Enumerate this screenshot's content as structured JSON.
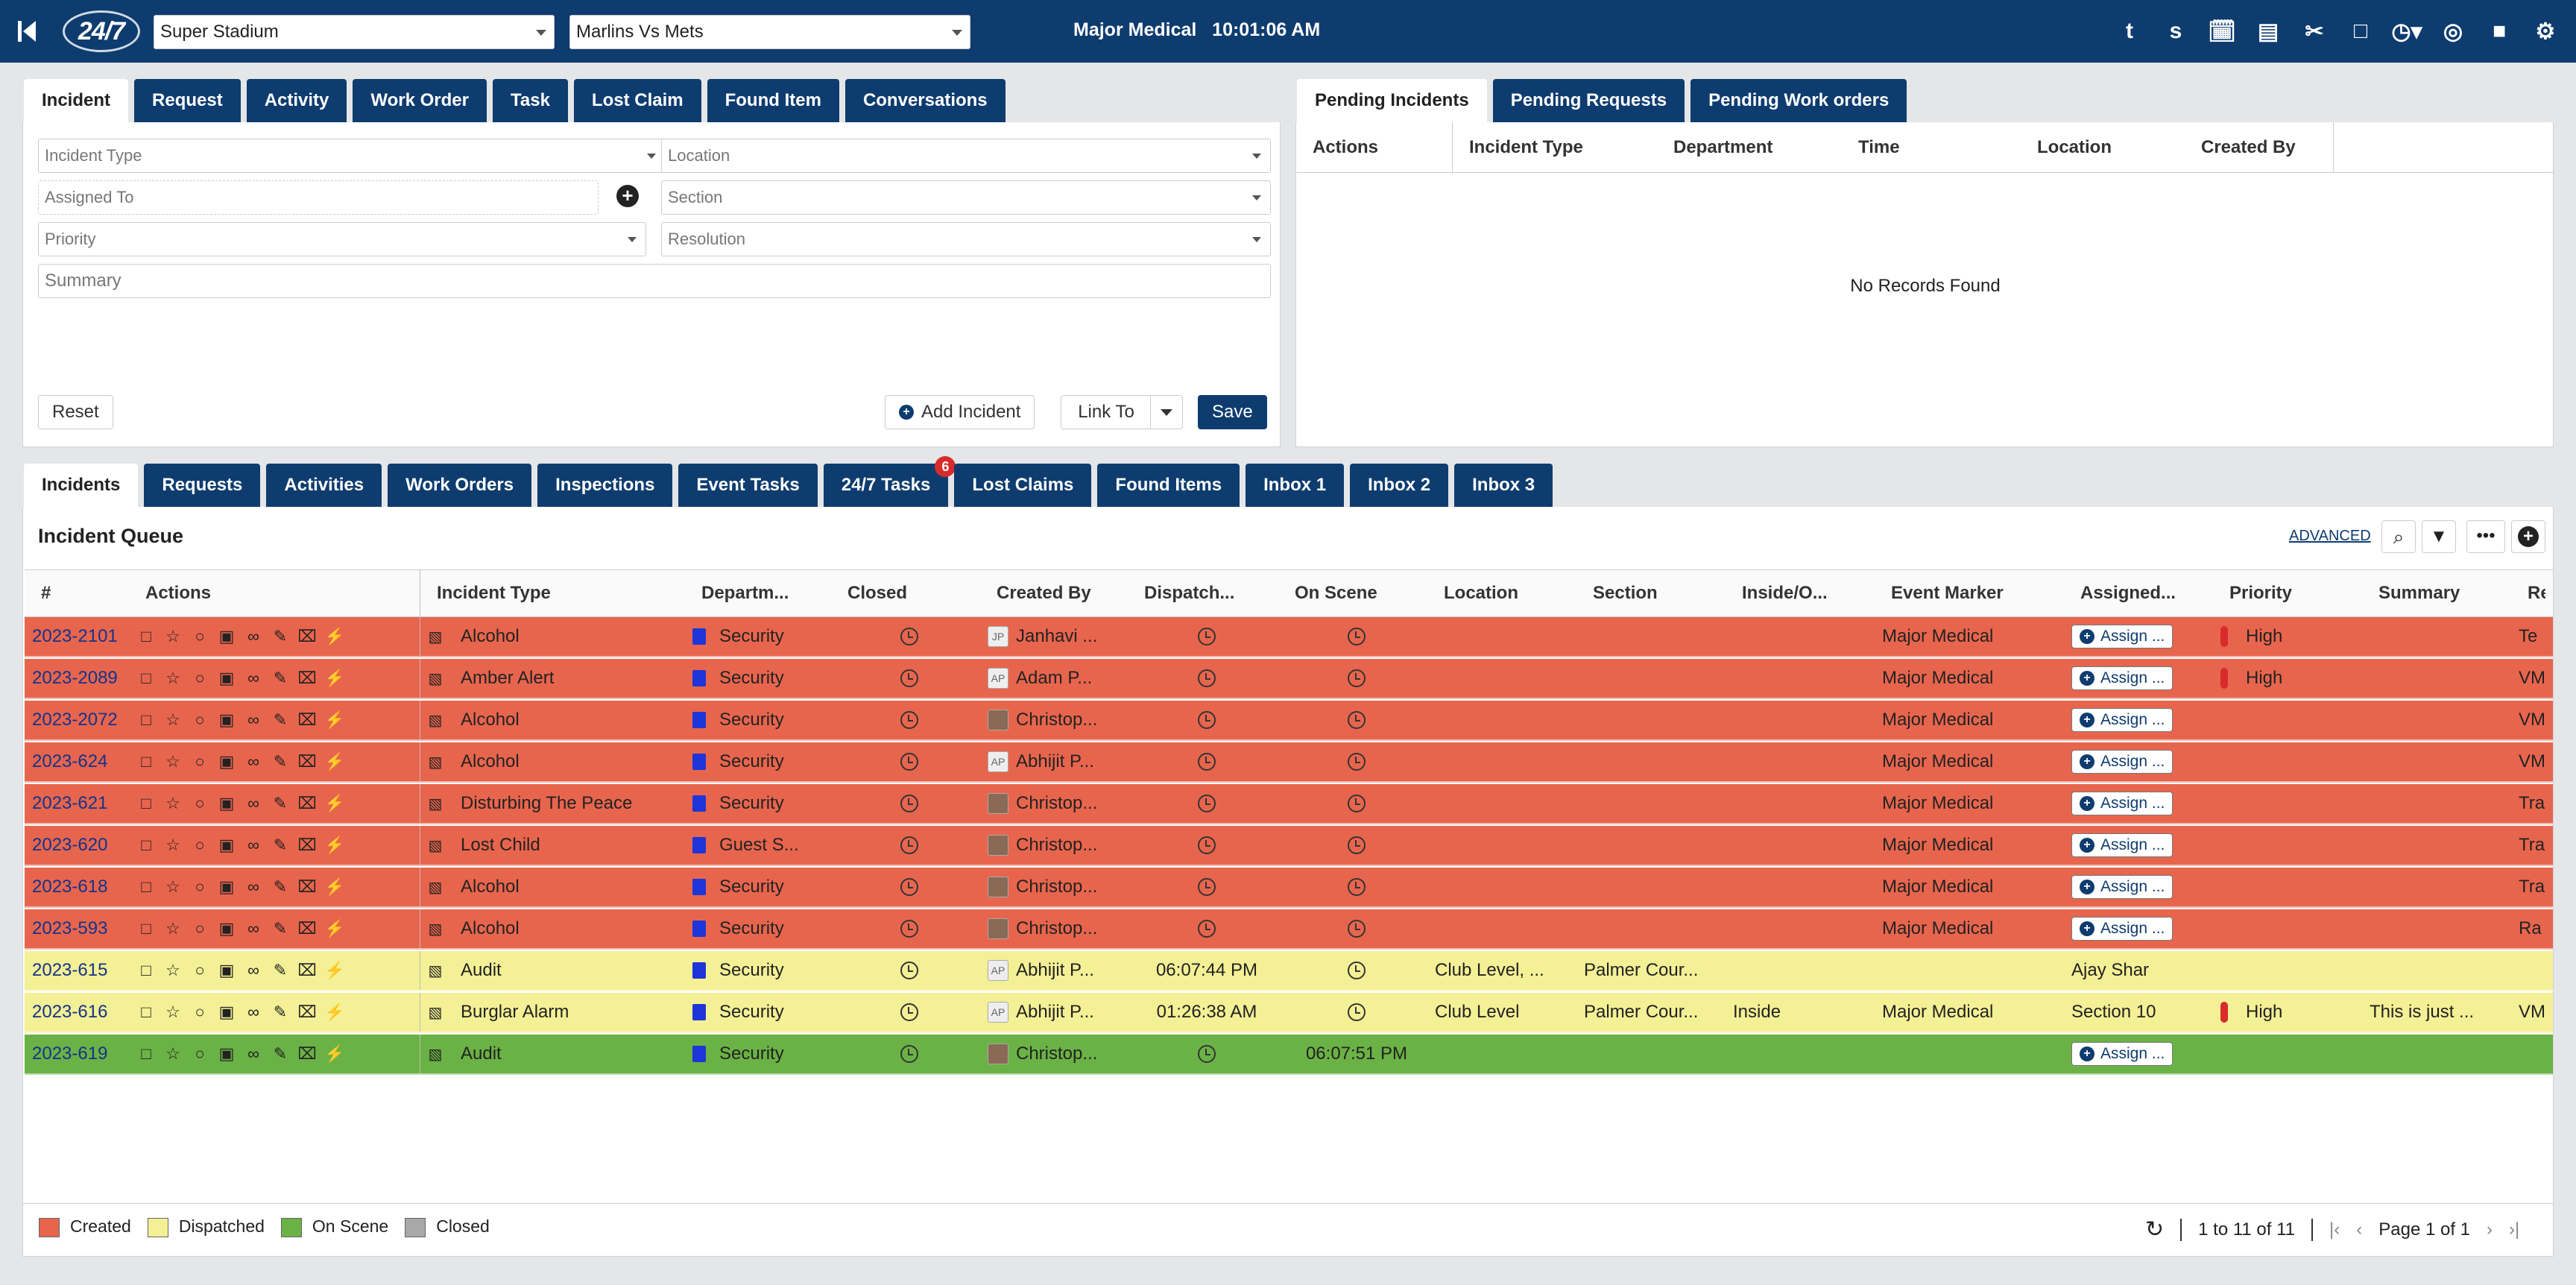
{
  "topbar": {
    "logo": "24/7",
    "venue": "Super Stadium",
    "event": "Marlins Vs Mets",
    "center": "Major Medical",
    "time": "10:01:06 AM",
    "icons": [
      "t",
      "s",
      "calendar-icon",
      "map-icon",
      "paperclip-icon",
      "note-icon",
      "clock-icon",
      "target-icon",
      "chat-icon",
      "gear-icon"
    ]
  },
  "form_tabs": [
    "Incident",
    "Request",
    "Activity",
    "Work Order",
    "Task",
    "Lost Claim",
    "Found Item",
    "Conversations"
  ],
  "form": {
    "incident_type": "Incident Type",
    "location": "Location",
    "assigned_to": "Assigned To",
    "section": "Section",
    "priority": "Priority",
    "resolution": "Resolution",
    "summary": "Summary",
    "reset": "Reset",
    "add_incident": "Add Incident",
    "link_to": "Link To",
    "save": "Save"
  },
  "pending_tabs": [
    "Pending Incidents",
    "Pending Requests",
    "Pending Work orders"
  ],
  "pending_cols": [
    "Actions",
    "Incident Type",
    "Department",
    "Time",
    "Location",
    "Created By"
  ],
  "pending_empty": "No Records Found",
  "queue_tabs": [
    "Incidents",
    "Requests",
    "Activities",
    "Work Orders",
    "Inspections",
    "Event Tasks",
    "24/7 Tasks",
    "Lost Claims",
    "Found Items",
    "Inbox 1",
    "Inbox 2",
    "Inbox 3"
  ],
  "queue_badge": "6",
  "queue": {
    "title": "Incident Queue",
    "advanced": "ADVANCED",
    "cols": [
      "#",
      "Actions",
      "Incident Type",
      "Departm...",
      "Closed",
      "Created By",
      "Dispatch...",
      "On Scene",
      "Location",
      "Section",
      "Inside/O...",
      "Event Marker",
      "Assigned...",
      "Priority",
      "Summary",
      "Re"
    ],
    "rows": [
      {
        "status": "created",
        "num": "2023-2101",
        "type": "Alcohol",
        "dept": "Security",
        "by": "Janhavi ...",
        "av": "JP",
        "disp": "",
        "scene": "",
        "loc": "",
        "sec": "",
        "io": "",
        "ev": "Major Medical",
        "assign": "Assign ...",
        "pri": "High",
        "sum": "",
        "re": "Te"
      },
      {
        "status": "created",
        "num": "2023-2089",
        "type": "Amber Alert",
        "dept": "Security",
        "by": "Adam P...",
        "av": "AP",
        "disp": "",
        "scene": "",
        "loc": "",
        "sec": "",
        "io": "",
        "ev": "Major Medical",
        "assign": "Assign ...",
        "pri": "High",
        "sum": "",
        "re": "VM"
      },
      {
        "status": "created",
        "num": "2023-2072",
        "type": "Alcohol",
        "dept": "Security",
        "by": "Christop...",
        "av": "",
        "disp": "",
        "scene": "",
        "loc": "",
        "sec": "",
        "io": "",
        "ev": "Major Medical",
        "assign": "Assign ...",
        "pri": "",
        "sum": "",
        "re": "VM"
      },
      {
        "status": "created",
        "num": "2023-624",
        "type": "Alcohol",
        "dept": "Security",
        "by": "Abhijit P...",
        "av": "AP",
        "disp": "",
        "scene": "",
        "loc": "",
        "sec": "",
        "io": "",
        "ev": "Major Medical",
        "assign": "Assign ...",
        "pri": "",
        "sum": "",
        "re": "VM"
      },
      {
        "status": "created",
        "num": "2023-621",
        "type": "Disturbing The Peace",
        "dept": "Security",
        "by": "Christop...",
        "av": "",
        "disp": "",
        "scene": "",
        "loc": "",
        "sec": "",
        "io": "",
        "ev": "Major Medical",
        "assign": "Assign ...",
        "pri": "",
        "sum": "",
        "re": "Tra"
      },
      {
        "status": "created",
        "num": "2023-620",
        "type": "Lost Child",
        "dept": "Guest S...",
        "by": "Christop...",
        "av": "",
        "disp": "",
        "scene": "",
        "loc": "",
        "sec": "",
        "io": "",
        "ev": "Major Medical",
        "assign": "Assign ...",
        "pri": "",
        "sum": "",
        "re": "Tra"
      },
      {
        "status": "created",
        "num": "2023-618",
        "type": "Alcohol",
        "dept": "Security",
        "by": "Christop...",
        "av": "",
        "disp": "",
        "scene": "",
        "loc": "",
        "sec": "",
        "io": "",
        "ev": "Major Medical",
        "assign": "Assign ...",
        "pri": "",
        "sum": "",
        "re": "Tra"
      },
      {
        "status": "created",
        "num": "2023-593",
        "type": "Alcohol",
        "dept": "Security",
        "by": "Christop...",
        "av": "",
        "disp": "",
        "scene": "",
        "loc": "",
        "sec": "",
        "io": "",
        "ev": "Major Medical",
        "assign": "Assign ...",
        "pri": "",
        "sum": "",
        "re": "Ra"
      },
      {
        "status": "dispatched",
        "num": "2023-615",
        "type": "Audit",
        "dept": "Security",
        "by": "Abhijit P...",
        "av": "AP",
        "disp": "06:07:44 PM",
        "scene": "",
        "loc": "Club Level, ...",
        "sec": "Palmer Cour...",
        "io": "",
        "ev": "",
        "assign": "Ajay Shar",
        "pri": "",
        "sum": "",
        "re": ""
      },
      {
        "status": "dispatched",
        "num": "2023-616",
        "type": "Burglar Alarm",
        "dept": "Security",
        "by": "Abhijit P...",
        "av": "AP",
        "disp": "01:26:38 AM",
        "scene": "",
        "loc": "Club Level",
        "sec": "Palmer Cour...",
        "io": "Inside",
        "ev": "Major Medical",
        "assign": "Section 10",
        "pri": "High",
        "sum": "This is just ...",
        "re": "VM"
      },
      {
        "status": "onscene",
        "num": "2023-619",
        "type": "Audit",
        "dept": "Security",
        "by": "Christop...",
        "av": "",
        "disp": "",
        "scene": "06:07:51 PM",
        "loc": "",
        "sec": "",
        "io": "",
        "ev": "",
        "assign": "Assign ...",
        "pri": "",
        "sum": "",
        "re": ""
      }
    ]
  },
  "legend": [
    "Created",
    "Dispatched",
    "On Scene",
    "Closed"
  ],
  "colors": {
    "created": "#e8654d",
    "dispatched": "#f4f095",
    "onscene": "#6ab245",
    "closed": "#a8a8a8"
  },
  "pager": {
    "range": "1 to 11 of 11",
    "page": "Page 1 of 1"
  }
}
